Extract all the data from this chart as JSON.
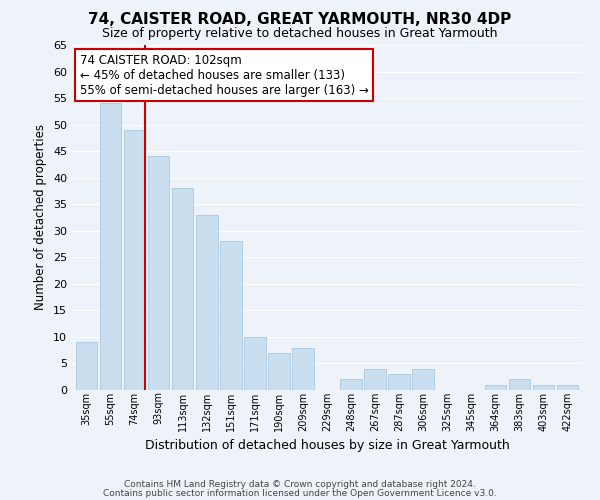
{
  "title": "74, CAISTER ROAD, GREAT YARMOUTH, NR30 4DP",
  "subtitle": "Size of property relative to detached houses in Great Yarmouth",
  "xlabel": "Distribution of detached houses by size in Great Yarmouth",
  "ylabel": "Number of detached properties",
  "categories": [
    "35sqm",
    "55sqm",
    "74sqm",
    "93sqm",
    "113sqm",
    "132sqm",
    "151sqm",
    "171sqm",
    "190sqm",
    "209sqm",
    "229sqm",
    "248sqm",
    "267sqm",
    "287sqm",
    "306sqm",
    "325sqm",
    "345sqm",
    "364sqm",
    "383sqm",
    "403sqm",
    "422sqm"
  ],
  "values": [
    9,
    54,
    49,
    44,
    38,
    33,
    28,
    10,
    7,
    8,
    0,
    2,
    4,
    3,
    4,
    0,
    0,
    1,
    2,
    1,
    1
  ],
  "bar_color": "#c9dff0",
  "bar_edge_color": "#a8c8e0",
  "highlight_bar_index": 2,
  "highlight_color": "#cc0000",
  "ylim": [
    0,
    65
  ],
  "yticks": [
    0,
    5,
    10,
    15,
    20,
    25,
    30,
    35,
    40,
    45,
    50,
    55,
    60,
    65
  ],
  "annotation_title": "74 CAISTER ROAD: 102sqm",
  "annotation_line1": "← 45% of detached houses are smaller (133)",
  "annotation_line2": "55% of semi-detached houses are larger (163) →",
  "annotation_box_color": "#ffffff",
  "annotation_box_edge": "#cc0000",
  "footer1": "Contains HM Land Registry data © Crown copyright and database right 2024.",
  "footer2": "Contains public sector information licensed under the Open Government Licence v3.0.",
  "background_color": "#eef2f9",
  "grid_color": "#ffffff"
}
